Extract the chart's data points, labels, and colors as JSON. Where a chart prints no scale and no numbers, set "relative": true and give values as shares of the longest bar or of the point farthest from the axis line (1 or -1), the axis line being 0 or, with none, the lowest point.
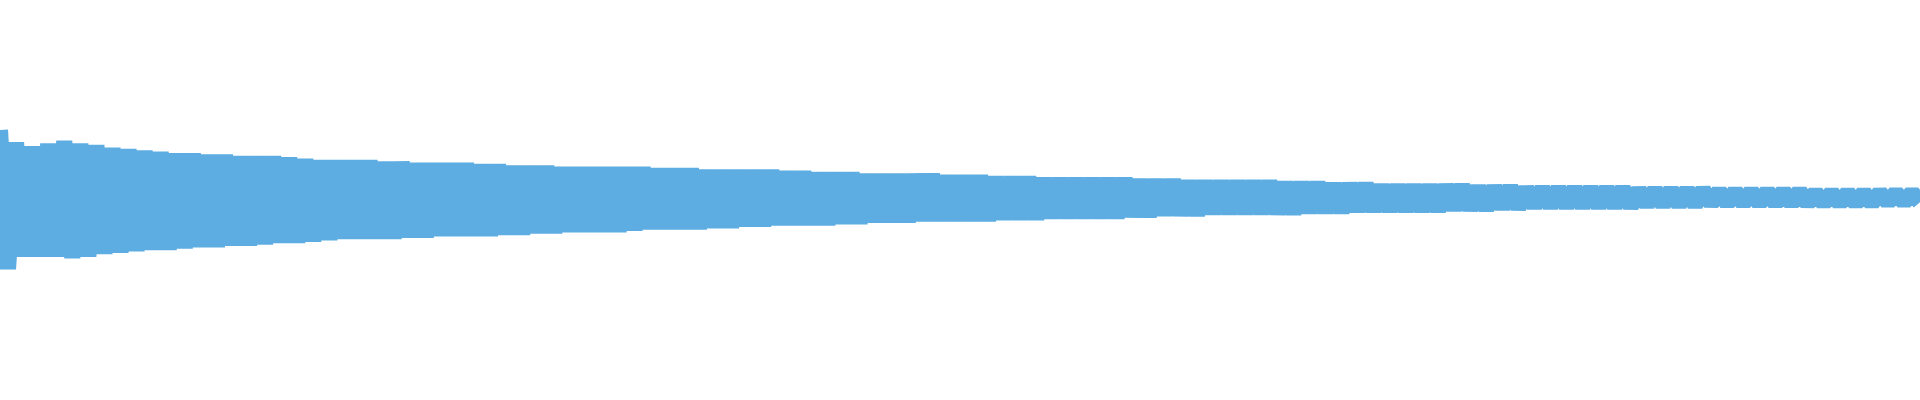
{
  "chart_data": {
    "type": "line",
    "relative": true,
    "color": "#5dade2",
    "categories": [
      null,
      null,
      null,
      null,
      null,
      null,
      null,
      null,
      null,
      null,
      null,
      null,
      null,
      null,
      null,
      null,
      null,
      null,
      null,
      null,
      null,
      null,
      null,
      null,
      null,
      null,
      null,
      null,
      null,
      null,
      null,
      null,
      null,
      null,
      null,
      null,
      null,
      null,
      null,
      null,
      null,
      null,
      null,
      null,
      null,
      null,
      null,
      null,
      null,
      null,
      null,
      null,
      null,
      null,
      null,
      null,
      null,
      null,
      null,
      null,
      null,
      null,
      null,
      null,
      null,
      null,
      null,
      null,
      null,
      null,
      null,
      null,
      null,
      null,
      null,
      null,
      null,
      null,
      null,
      null,
      null,
      null,
      null,
      null,
      null,
      null,
      null,
      null,
      null,
      null,
      null,
      null,
      null,
      null,
      null,
      null,
      null,
      null,
      null,
      null,
      null,
      null,
      null,
      null,
      null,
      null,
      null,
      null,
      null,
      null,
      null,
      null,
      null,
      null,
      null,
      null,
      null,
      null,
      null,
      null,
      null,
      null,
      null,
      null,
      null,
      null,
      null,
      null,
      null,
      null,
      null,
      null,
      null,
      null,
      null,
      null,
      null,
      null,
      null,
      null,
      null,
      null,
      null,
      null,
      null,
      null,
      null,
      null,
      null,
      null,
      null,
      null,
      null,
      null,
      null,
      null,
      null,
      null,
      null,
      null,
      null,
      null,
      null,
      null,
      null,
      null,
      null,
      null,
      null,
      null,
      null,
      null,
      null,
      null,
      null,
      null,
      null,
      null,
      null,
      null,
      null,
      null,
      null,
      null,
      null,
      null,
      null,
      null,
      null,
      null,
      null,
      null,
      null,
      null,
      null,
      null,
      null,
      null,
      null,
      null,
      null,
      null,
      null,
      null,
      null,
      null,
      null,
      null,
      null,
      null,
      null,
      null,
      null,
      null,
      null,
      null,
      null,
      null,
      null,
      null,
      null,
      null,
      null,
      null,
      null,
      null,
      null,
      null,
      null,
      null,
      null,
      null,
      null,
      null,
      null,
      null,
      null,
      null,
      null,
      null
    ],
    "values": [
      1,
      0,
      0.91,
      0.09,
      0.88,
      0.09,
      0.9,
      0.09,
      0.92,
      0.08,
      0.9,
      0.09,
      0.89,
      0.11,
      0.87,
      0.12,
      0.86,
      0.13,
      0.85,
      0.14,
      0.84,
      0.14,
      0.83,
      0.15,
      0.83,
      0.16,
      0.82,
      0.16,
      0.82,
      0.17,
      0.81,
      0.17,
      0.81,
      0.18,
      0.81,
      0.19,
      0.8,
      0.19,
      0.79,
      0.2,
      0.78,
      0.21,
      0.78,
      0.22,
      0.78,
      0.22,
      0.78,
      0.22,
      0.77,
      0.22,
      0.77,
      0.23,
      0.76,
      0.23,
      0.76,
      0.24,
      0.76,
      0.24,
      0.76,
      0.24,
      0.75,
      0.24,
      0.75,
      0.25,
      0.74,
      0.25,
      0.74,
      0.26,
      0.74,
      0.26,
      0.73,
      0.27,
      0.73,
      0.27,
      0.73,
      0.27,
      0.73,
      0.27,
      0.73,
      0.28,
      0.73,
      0.29,
      0.72,
      0.29,
      0.72,
      0.29,
      0.72,
      0.29,
      0.71,
      0.3,
      0.71,
      0.3,
      0.71,
      0.31,
      0.71,
      0.31,
      0.71,
      0.32,
      0.7,
      0.32,
      0.7,
      0.32,
      0.69,
      0.32,
      0.69,
      0.33,
      0.69,
      0.33,
      0.68,
      0.34,
      0.68,
      0.34,
      0.68,
      0.34,
      0.68,
      0.35,
      0.68,
      0.35,
      0.67,
      0.35,
      0.67,
      0.35,
      0.67,
      0.35,
      0.66,
      0.36,
      0.66,
      0.36,
      0.66,
      0.36,
      0.65,
      0.37,
      0.65,
      0.37,
      0.65,
      0.37,
      0.65,
      0.37,
      0.65,
      0.37,
      0.65,
      0.38,
      0.64,
      0.38,
      0.64,
      0.39,
      0.64,
      0.39,
      0.63,
      0.39,
      0.63,
      0.4,
      0.63,
      0.4,
      0.63,
      0.4,
      0.63,
      0.4,
      0.63,
      0.4,
      0.62,
      0.4,
      0.62,
      0.41,
      0.62,
      0.41,
      0.61,
      0.41,
      0.61,
      0.42,
      0.61,
      0.42,
      0.6,
      0.42,
      0.6,
      0.42,
      0.6,
      0.42,
      0.6,
      0.42,
      0.6,
      0.43,
      0.6,
      0.43,
      0.59,
      0.43,
      0.59,
      0.44,
      0.59,
      0.44,
      0.58,
      0.45,
      0.58,
      0.45,
      0.58,
      0.45,
      0.58,
      0.45,
      0.58,
      0.45,
      0.58,
      0.45,
      0.58,
      0.45,
      0.57,
      0.46,
      0.57,
      0.46,
      0.57,
      0.46,
      0.57,
      0.46,
      0.57,
      0.47,
      0.56,
      0.47,
      0.56,
      0.47,
      0.56,
      0.47,
      0.56,
      0.47,
      0.56,
      0.47,
      0.56,
      0.47,
      0.55,
      0.47,
      0.55,
      0.47,
      0.55,
      0.47,
      0.55,
      0.47,
      0.55,
      0.48,
      0.55,
      0.48,
      0.55,
      0.48
    ]
  }
}
